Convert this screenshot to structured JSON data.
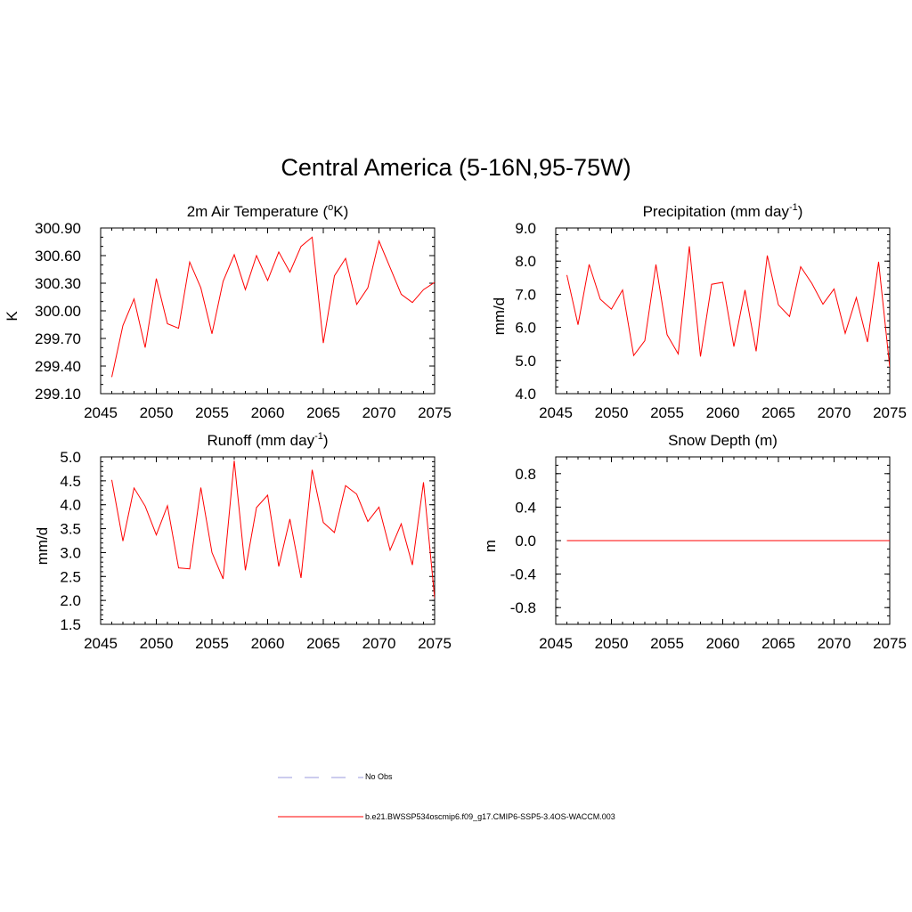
{
  "title": "Central America (5-16N,95-75W)",
  "colors": {
    "series": "#ff0000",
    "obs": "#9999dd",
    "axis": "#000000"
  },
  "legend": [
    {
      "label": "No Obs",
      "style": "dashed",
      "color": "#9999dd"
    },
    {
      "label": "b.e21.BWSSP534oscmip6.f09_g17.CMIP6-SSP5-3.4OS-WACCM.003",
      "style": "solid",
      "color": "#ff0000"
    }
  ],
  "chart_data": [
    {
      "type": "line",
      "title": "2m Air Temperature (",
      "title_sup": "o",
      "title_end": "K)",
      "ylabel": "K",
      "xlim": [
        2045,
        2075
      ],
      "ylim": [
        299.1,
        300.9
      ],
      "xticks": [
        2045,
        2050,
        2055,
        2060,
        2065,
        2070,
        2075
      ],
      "yticks": [
        "299.10",
        "299.40",
        "299.70",
        "300.00",
        "300.30",
        "300.60",
        "300.90"
      ],
      "yminor": 0.1,
      "x": [
        2046,
        2047,
        2048,
        2049,
        2050,
        2051,
        2052,
        2053,
        2054,
        2055,
        2056,
        2057,
        2058,
        2059,
        2060,
        2061,
        2062,
        2063,
        2064,
        2065,
        2066,
        2067,
        2068,
        2069,
        2070,
        2071,
        2072,
        2073,
        2074,
        2075
      ],
      "series": [
        {
          "name": "b.e21.BWSSP534oscmip6.f09_g17.CMIP6-SSP5-3.4OS-WACCM.003",
          "values": [
            299.28,
            299.84,
            300.13,
            299.6,
            300.35,
            299.86,
            299.81,
            300.53,
            300.25,
            299.75,
            300.32,
            300.61,
            300.23,
            300.6,
            300.33,
            300.64,
            300.42,
            300.7,
            300.8,
            299.65,
            300.38,
            300.57,
            300.07,
            300.25,
            300.76,
            300.47,
            300.18,
            300.09,
            300.23,
            300.31
          ]
        }
      ]
    },
    {
      "type": "line",
      "title": "Precipitation (mm day",
      "title_sup": "-1",
      "title_end": ")",
      "ylabel": "mm/d",
      "xlim": [
        2045,
        2075
      ],
      "ylim": [
        4.0,
        9.0
      ],
      "xticks": [
        2045,
        2050,
        2055,
        2060,
        2065,
        2070,
        2075
      ],
      "yticks": [
        "4.0",
        "5.0",
        "6.0",
        "7.0",
        "8.0",
        "9.0"
      ],
      "yminor": 0.2,
      "x": [
        2046,
        2047,
        2048,
        2049,
        2050,
        2051,
        2052,
        2053,
        2054,
        2055,
        2056,
        2057,
        2058,
        2059,
        2060,
        2061,
        2062,
        2063,
        2064,
        2065,
        2066,
        2067,
        2068,
        2069,
        2070,
        2071,
        2072,
        2073,
        2074,
        2075
      ],
      "series": [
        {
          "name": "b.e21.BWSSP534oscmip6.f09_g17.CMIP6-SSP5-3.4OS-WACCM.003",
          "values": [
            7.58,
            6.08,
            7.9,
            6.85,
            6.55,
            7.13,
            5.15,
            5.6,
            7.9,
            5.78,
            5.2,
            8.45,
            5.12,
            7.3,
            7.36,
            5.42,
            7.13,
            5.28,
            8.17,
            6.68,
            6.33,
            7.83,
            7.33,
            6.7,
            7.16,
            5.82,
            6.9,
            5.56,
            7.98,
            4.8
          ]
        }
      ]
    },
    {
      "type": "line",
      "title": "Runoff (mm day",
      "title_sup": "-1",
      "title_end": ")",
      "ylabel": "mm/d",
      "xlim": [
        2045,
        2075
      ],
      "ylim": [
        1.5,
        5.0
      ],
      "xticks": [
        2045,
        2050,
        2055,
        2060,
        2065,
        2070,
        2075
      ],
      "yticks": [
        "1.5",
        "2.0",
        "2.5",
        "3.0",
        "3.5",
        "4.0",
        "4.5",
        "5.0"
      ],
      "yminor": 0.1,
      "x": [
        2046,
        2047,
        2048,
        2049,
        2050,
        2051,
        2052,
        2053,
        2054,
        2055,
        2056,
        2057,
        2058,
        2059,
        2060,
        2061,
        2062,
        2063,
        2064,
        2065,
        2066,
        2067,
        2068,
        2069,
        2070,
        2071,
        2072,
        2073,
        2074,
        2075
      ],
      "series": [
        {
          "name": "b.e21.BWSSP534oscmip6.f09_g17.CMIP6-SSP5-3.4OS-WACCM.003",
          "values": [
            4.52,
            3.24,
            4.35,
            3.97,
            3.37,
            3.98,
            2.68,
            2.66,
            4.36,
            3.0,
            2.45,
            4.92,
            2.63,
            3.94,
            4.2,
            2.71,
            3.7,
            2.47,
            4.73,
            3.63,
            3.42,
            4.4,
            4.22,
            3.65,
            3.95,
            3.05,
            3.6,
            2.74,
            4.47,
            2.05
          ]
        }
      ]
    },
    {
      "type": "line",
      "title": "Snow Depth (m)",
      "title_sup": "",
      "title_end": "",
      "ylabel": "m",
      "xlim": [
        2045,
        2075
      ],
      "ylim": [
        -1.0,
        1.0
      ],
      "xticks": [
        2045,
        2050,
        2055,
        2060,
        2065,
        2070,
        2075
      ],
      "yticks": [
        "-0.8",
        "-0.4",
        "0.0",
        "0.4",
        "0.8"
      ],
      "ytick_values": [
        -0.8,
        -0.4,
        0.0,
        0.4,
        0.8
      ],
      "yminor": 0.1,
      "x": [
        2046,
        2047,
        2048,
        2049,
        2050,
        2051,
        2052,
        2053,
        2054,
        2055,
        2056,
        2057,
        2058,
        2059,
        2060,
        2061,
        2062,
        2063,
        2064,
        2065,
        2066,
        2067,
        2068,
        2069,
        2070,
        2071,
        2072,
        2073,
        2074,
        2075
      ],
      "series": [
        {
          "name": "b.e21.BWSSP534oscmip6.f09_g17.CMIP6-SSP5-3.4OS-WACCM.003",
          "values": [
            0,
            0,
            0,
            0,
            0,
            0,
            0,
            0,
            0,
            0,
            0,
            0,
            0,
            0,
            0,
            0,
            0,
            0,
            0,
            0,
            0,
            0,
            0,
            0,
            0,
            0,
            0,
            0,
            0,
            0
          ]
        }
      ]
    }
  ]
}
